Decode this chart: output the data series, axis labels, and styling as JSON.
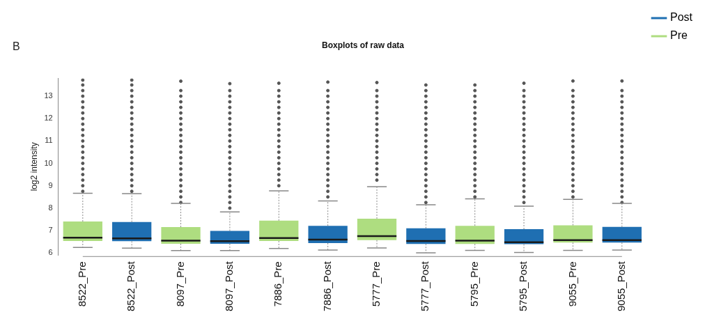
{
  "chart_data": {
    "type": "box",
    "title": "Boxplots of raw data",
    "ylabel": "log2 intensity",
    "annotations": [
      "B"
    ],
    "categories": [
      "8522_Pre",
      "8522_Post",
      "8097_Pre",
      "8097_Post",
      "7886_Pre",
      "7886_Post",
      "5777_Pre",
      "5777_Post",
      "5795_Pre",
      "5795_Post",
      "9055_Pre",
      "9055_Post"
    ],
    "ylim": [
      5.9,
      13.8
    ],
    "yticks": [
      6,
      7,
      8,
      9,
      10,
      11,
      12,
      13
    ],
    "grid": false,
    "legend": "top right",
    "series": [
      {
        "name": "Post",
        "color": "#1f6fb2",
        "x": [
          "8522_Post",
          "8097_Post",
          "7886_Post",
          "5777_Post",
          "5795_Post",
          "9055_Post"
        ],
        "boxes": [
          {
            "low": 6.21,
            "q1": 6.52,
            "median": 6.65,
            "q3": 7.38,
            "high": 8.65,
            "outliers": [
              8.75,
              9,
              9.25,
              9.5,
              9.75,
              10,
              10.25,
              10.5,
              10.75,
              11,
              11.25,
              11.5,
              11.75,
              12,
              12.25,
              12.5,
              12.75,
              13,
              13.25,
              13.5,
              13.72
            ]
          },
          {
            "low": 6.1,
            "q1": 6.41,
            "median": 6.52,
            "q3": 6.98,
            "high": 7.83,
            "outliers": [
              8,
              8.25,
              8.5,
              8.75,
              9,
              9.25,
              9.5,
              9.75,
              10,
              10.25,
              10.5,
              10.75,
              11,
              11.25,
              11.5,
              11.75,
              12,
              12.25,
              12.5,
              12.75,
              13,
              13.25,
              13.56
            ]
          },
          {
            "low": 6.13,
            "q1": 6.44,
            "median": 6.59,
            "q3": 7.21,
            "high": 8.32,
            "outliers": [
              8.5,
              8.75,
              9,
              9.25,
              9.5,
              9.75,
              10,
              10.25,
              10.5,
              10.75,
              11,
              11.25,
              11.5,
              11.75,
              12,
              12.25,
              12.5,
              12.75,
              13,
              13.25,
              13.63
            ]
          },
          {
            "low": 6.0,
            "q1": 6.4,
            "median": 6.53,
            "q3": 7.1,
            "high": 8.15,
            "outliers": [
              8.25,
              8.5,
              8.75,
              9,
              9.25,
              9.5,
              9.75,
              10,
              10.25,
              10.5,
              10.75,
              11,
              11.25,
              11.5,
              11.75,
              12,
              12.25,
              12.5,
              12.75,
              13,
              13.25,
              13.5
            ]
          },
          {
            "low": 6.02,
            "q1": 6.39,
            "median": 6.48,
            "q3": 7.06,
            "high": 8.09,
            "outliers": [
              8.25,
              8.5,
              8.75,
              9,
              9.25,
              9.5,
              9.75,
              10,
              10.25,
              10.5,
              10.75,
              11,
              11.25,
              11.5,
              11.75,
              12,
              12.25,
              12.5,
              12.75,
              13,
              13.25,
              13.58
            ]
          },
          {
            "low": 6.13,
            "q1": 6.46,
            "median": 6.57,
            "q3": 7.16,
            "high": 8.21,
            "outliers": [
              8.25,
              8.5,
              8.75,
              9,
              9.25,
              9.5,
              9.75,
              10,
              10.25,
              10.5,
              10.75,
              11,
              11.25,
              11.5,
              11.75,
              12,
              12.25,
              12.5,
              12.75,
              13,
              13.25,
              13.68
            ]
          }
        ]
      },
      {
        "name": "Pre",
        "color": "#aedd80",
        "x": [
          "8522_Pre",
          "8097_Pre",
          "7886_Pre",
          "5777_Pre",
          "5795_Pre",
          "9055_Pre"
        ],
        "boxes": [
          {
            "low": 6.24,
            "q1": 6.53,
            "median": 6.68,
            "q3": 7.4,
            "high": 8.66,
            "outliers": [
              8.75,
              9,
              9.25,
              9.5,
              9.75,
              10,
              10.25,
              10.5,
              10.75,
              11,
              11.25,
              11.5,
              11.75,
              12,
              12.25,
              12.5,
              12.75,
              13,
              13.25,
              13.5,
              13.72
            ]
          },
          {
            "low": 6.1,
            "q1": 6.41,
            "median": 6.55,
            "q3": 7.15,
            "high": 8.21,
            "outliers": [
              8.25,
              8.5,
              8.75,
              9,
              9.25,
              9.5,
              9.75,
              10,
              10.25,
              10.5,
              10.75,
              11,
              11.25,
              11.5,
              11.75,
              12,
              12.25,
              12.5,
              12.75,
              13,
              13.25,
              13.67
            ]
          },
          {
            "low": 6.2,
            "q1": 6.53,
            "median": 6.66,
            "q3": 7.44,
            "high": 8.77,
            "outliers": [
              9,
              9.25,
              9.5,
              9.75,
              10,
              10.25,
              10.5,
              10.75,
              11,
              11.25,
              11.5,
              11.75,
              12,
              12.25,
              12.5,
              12.75,
              13,
              13.25,
              13.58
            ]
          },
          {
            "low": 6.22,
            "q1": 6.57,
            "median": 6.75,
            "q3": 7.53,
            "high": 8.96,
            "outliers": [
              9.25,
              9.5,
              9.75,
              10,
              10.25,
              10.5,
              10.75,
              11,
              11.25,
              11.5,
              11.75,
              12,
              12.25,
              12.5,
              12.75,
              13,
              13.25,
              13.61
            ]
          },
          {
            "low": 6.11,
            "q1": 6.4,
            "median": 6.55,
            "q3": 7.21,
            "high": 8.41,
            "outliers": [
              8.5,
              8.75,
              9,
              9.25,
              9.5,
              9.75,
              10,
              10.25,
              10.5,
              10.75,
              11,
              11.25,
              11.5,
              11.75,
              12,
              12.25,
              12.5,
              12.75,
              13,
              13.25,
              13.5
            ]
          },
          {
            "low": 6.11,
            "q1": 6.46,
            "median": 6.57,
            "q3": 7.23,
            "high": 8.39,
            "outliers": [
              8.5,
              8.75,
              9,
              9.25,
              9.5,
              9.75,
              10,
              10.25,
              10.5,
              10.75,
              11,
              11.25,
              11.5,
              11.75,
              12,
              12.25,
              12.5,
              12.75,
              13,
              13.25,
              13.68
            ]
          }
        ]
      }
    ]
  }
}
